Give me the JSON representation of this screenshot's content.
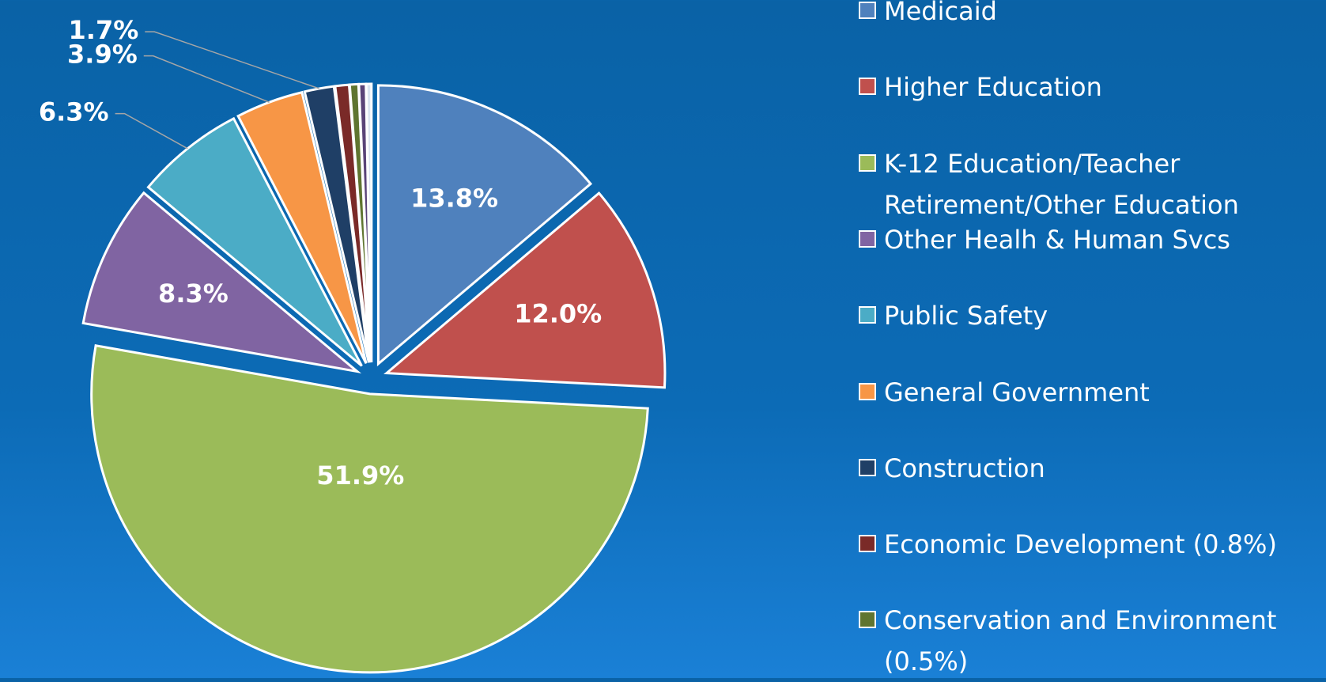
{
  "chart_data": {
    "type": "pie",
    "categories": [
      "Medicaid",
      "Higher Education",
      "K-12 Education/Teacher Retirement/Other Education",
      "Other Healh & Human Svcs",
      "Public Safety",
      "General Government",
      "Construction",
      "Economic Development (0.8%)",
      "Conservation and Environment (0.5%)",
      null,
      null
    ],
    "values": [
      13.8,
      12.0,
      51.9,
      8.3,
      6.3,
      3.9,
      1.7,
      0.8,
      0.5,
      0.4,
      0.3
    ],
    "value_labels": [
      "13.8%",
      "12.0%",
      "51.9%",
      "8.3%",
      "6.3%",
      "3.9%",
      "1.7%",
      null,
      null,
      null,
      null
    ],
    "colors": [
      "#4f81bd",
      "#c0504d",
      "#9bbb59",
      "#8064a2",
      "#4bacc6",
      "#f79646",
      "#1f3f66",
      "#7a2a28",
      "#5f7530",
      "#5a4478",
      "#dbe5f1"
    ],
    "legend": "right"
  }
}
